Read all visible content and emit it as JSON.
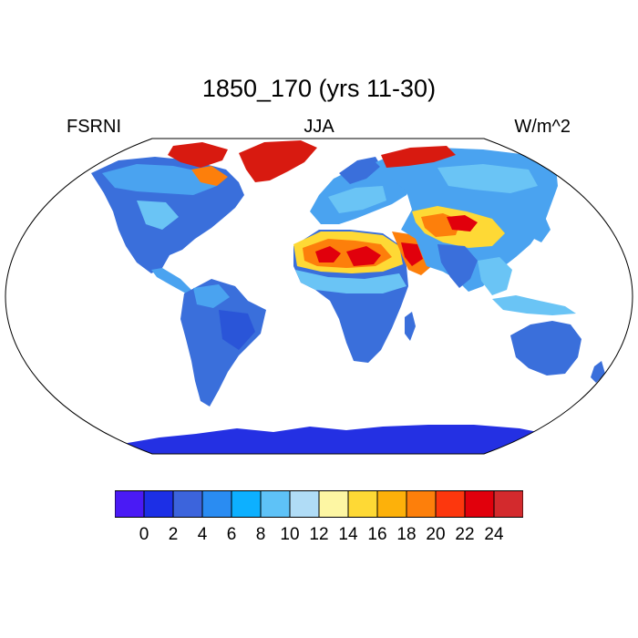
{
  "title": "1850_170 (yrs 11-30)",
  "variable": "FSRNI",
  "season": "JJA",
  "units": "W/m^2",
  "colorbar": {
    "colors": [
      "#4a1af5",
      "#1c2fe6",
      "#3c64dc",
      "#2a8cf2",
      "#0db0ff",
      "#5ec2f7",
      "#b0dcf6",
      "#fdf6a3",
      "#fed935",
      "#fdb10a",
      "#fd7f0b",
      "#fd370d",
      "#e1000c",
      "#d32a2d"
    ],
    "tick_labels": [
      "0",
      "2",
      "4",
      "6",
      "8",
      "10",
      "12",
      "14",
      "16",
      "18",
      "20",
      "22",
      "24"
    ]
  },
  "palette": {
    "ocean": "#ffffff",
    "antarctica": "#2430e3",
    "land_blue": "#3a6fdb",
    "land_light": "#4aa3f0",
    "land_cyan": "#6ac4f5",
    "desert_red": "#e1000c",
    "desert_orange": "#fd7f0b",
    "desert_yellow": "#fed935",
    "greenland": "#d81a10"
  }
}
